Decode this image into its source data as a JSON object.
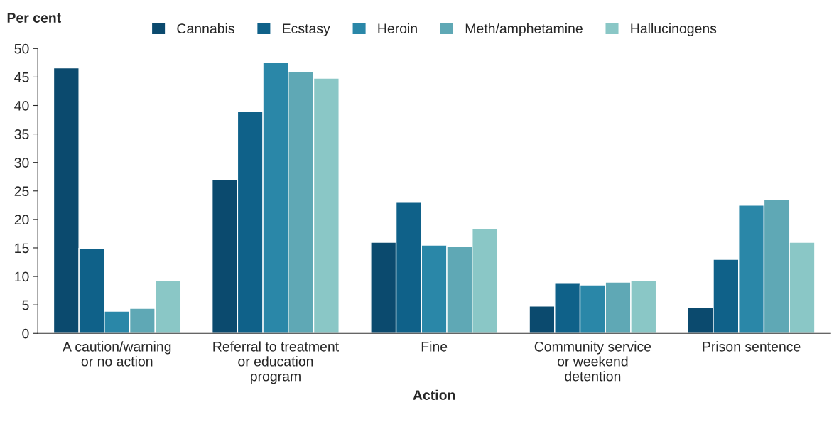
{
  "chart_data": {
    "type": "bar",
    "xlabel": "Action",
    "ylabel": "Per cent",
    "categories": [
      "A caution/warning\nor no action",
      "Referral to treatment\nor education\nprogram",
      "Fine",
      "Community service\nor weekend\ndetention",
      "Prison sentence"
    ],
    "series": [
      {
        "name": "Cannabis",
        "color": "#0b4a6e",
        "values": [
          46.6,
          27,
          16,
          4.8,
          4.5
        ]
      },
      {
        "name": "Ecstasy",
        "color": "#0f6189",
        "values": [
          14.9,
          38.9,
          23,
          8.8,
          13
        ]
      },
      {
        "name": "Heroin",
        "color": "#2a87a8",
        "values": [
          3.9,
          47.5,
          15.5,
          8.5,
          22.5
        ]
      },
      {
        "name": "Meth/amphetamine",
        "color": "#5fa8b5",
        "values": [
          4.4,
          45.9,
          15.3,
          9,
          23.5
        ]
      },
      {
        "name": "Hallucinogens",
        "color": "#8ac7c6",
        "values": [
          9.3,
          44.8,
          18.4,
          9.3,
          16
        ]
      }
    ],
    "ylim": [
      0,
      50
    ],
    "yticks": [
      0,
      5,
      10,
      15,
      20,
      25,
      30,
      35,
      40,
      45,
      50
    ],
    "grid": false,
    "legend": "top"
  }
}
